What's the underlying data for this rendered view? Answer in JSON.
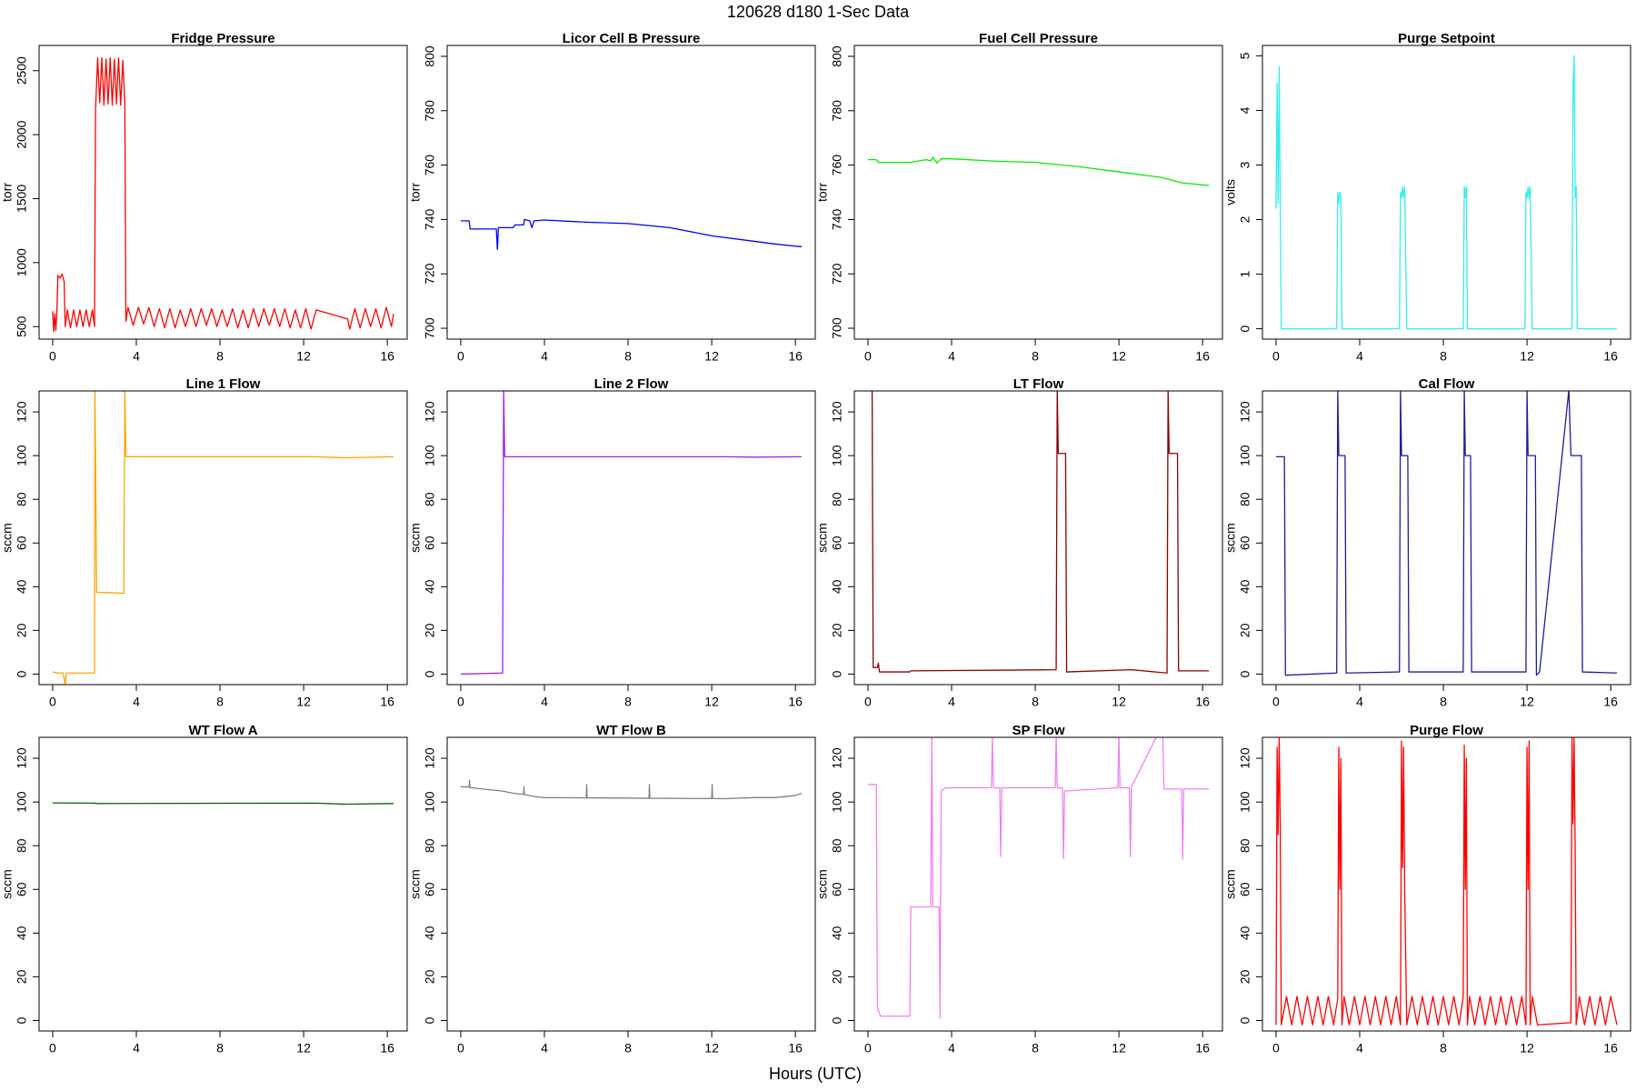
{
  "title": "120628   d180   1-Sec Data",
  "xlabel": "Hours (UTC)",
  "chart_data": [
    {
      "type": "line",
      "title": "Fridge Pressure",
      "ylabel": "torr",
      "color": "#ff0000",
      "xlim": [
        -0.65,
        16.95
      ],
      "xticks": [
        0,
        4,
        8,
        12,
        16
      ],
      "ylim": [
        402,
        2697
      ],
      "yticks": [
        500,
        1000,
        1500,
        2000,
        2500
      ],
      "x": [
        0,
        0.05,
        0.1,
        0.15,
        0.2,
        0.25,
        0.35,
        0.45,
        0.55,
        0.6,
        0.7,
        0.85,
        1.0,
        1.15,
        1.3,
        1.45,
        1.6,
        1.75,
        1.9,
        2.0,
        2.05,
        2.15,
        2.25,
        2.35,
        2.45,
        2.55,
        2.65,
        2.75,
        2.85,
        2.95,
        3.05,
        3.15,
        3.25,
        3.35,
        3.45,
        3.5,
        3.6,
        3.85,
        4.1,
        4.35,
        4.6,
        4.85,
        5.1,
        5.35,
        5.6,
        5.85,
        6.1,
        6.35,
        6.6,
        6.85,
        7.1,
        7.35,
        7.6,
        7.85,
        8.1,
        8.35,
        8.6,
        8.85,
        9.1,
        9.35,
        9.6,
        9.85,
        10.1,
        10.35,
        10.6,
        10.85,
        11.1,
        11.35,
        11.6,
        11.85,
        12.1,
        12.35,
        12.6,
        14.1,
        14.2,
        14.45,
        14.7,
        14.95,
        15.2,
        15.45,
        15.7,
        15.95,
        16.2,
        16.3
      ],
      "values": [
        620,
        460,
        600,
        470,
        610,
        900,
        880,
        910,
        850,
        500,
        630,
        490,
        630,
        500,
        630,
        500,
        630,
        500,
        630,
        500,
        2200,
        2600,
        2250,
        2600,
        2230,
        2590,
        2240,
        2600,
        2230,
        2590,
        2240,
        2600,
        2230,
        2580,
        2240,
        540,
        650,
        510,
        650,
        520,
        650,
        500,
        640,
        490,
        640,
        490,
        630,
        500,
        640,
        500,
        640,
        510,
        640,
        500,
        630,
        500,
        640,
        490,
        630,
        490,
        640,
        500,
        640,
        510,
        640,
        500,
        640,
        490,
        630,
        490,
        640,
        480,
        630,
        560,
        480,
        640,
        490,
        640,
        500,
        640,
        490,
        650,
        500,
        600
      ]
    },
    {
      "type": "line",
      "title": "Licor Cell B Pressure",
      "ylabel": "torr",
      "color": "#0000ff",
      "xlim": [
        -0.65,
        16.95
      ],
      "xticks": [
        0,
        4,
        8,
        12,
        16
      ],
      "ylim": [
        696,
        804
      ],
      "yticks": [
        700,
        720,
        740,
        760,
        780,
        800
      ],
      "x": [
        0,
        0.4,
        0.45,
        1.7,
        1.75,
        1.8,
        2.5,
        2.6,
        3.0,
        3.05,
        3.3,
        3.4,
        3.5,
        4,
        6,
        8,
        10,
        12,
        14,
        15,
        16,
        16.3
      ],
      "values": [
        739.5,
        739.5,
        736.5,
        736.5,
        729,
        737,
        737,
        738,
        738,
        740,
        739.5,
        737,
        739.5,
        739.8,
        739,
        738.5,
        737,
        734,
        732,
        731,
        730.2,
        730
      ]
    },
    {
      "type": "line",
      "title": "Fuel Cell Pressure",
      "ylabel": "torr",
      "color": "#00ee00",
      "xlim": [
        -0.65,
        16.95
      ],
      "xticks": [
        0,
        4,
        8,
        12,
        16
      ],
      "ylim": [
        696,
        804
      ],
      "yticks": [
        700,
        720,
        740,
        760,
        780,
        800
      ],
      "x": [
        0,
        0.4,
        0.5,
        2,
        2.8,
        3.0,
        3.1,
        3.3,
        3.5,
        4,
        6,
        8,
        10,
        12,
        14,
        15,
        16,
        16.3
      ],
      "values": [
        762,
        762,
        761,
        761,
        762,
        761.5,
        762.8,
        760.8,
        762.3,
        762.3,
        761.5,
        761,
        759.5,
        757.5,
        755.5,
        753.5,
        752.7,
        752.5
      ]
    },
    {
      "type": "line",
      "title": "Purge Setpoint",
      "ylabel": "volts",
      "color": "#33eeee",
      "xlim": [
        -0.65,
        16.95
      ],
      "xticks": [
        0,
        4,
        8,
        12,
        16
      ],
      "ylim": [
        -0.19,
        5.19
      ],
      "yticks": [
        0,
        1,
        2,
        3,
        4,
        5
      ],
      "x": [
        0,
        0.05,
        0.1,
        0.15,
        0.2,
        0.25,
        2.9,
        2.95,
        3.0,
        3.05,
        3.1,
        3.15,
        5.9,
        5.95,
        6.0,
        6.05,
        6.1,
        6.15,
        6.25,
        8.95,
        9.0,
        9.05,
        9.1,
        9.15,
        11.9,
        11.95,
        12.0,
        12.05,
        12.1,
        12.15,
        12.25,
        14.15,
        14.2,
        14.25,
        14.3,
        14.35,
        14.4,
        16.3
      ],
      "values": [
        2.2,
        4.5,
        2.3,
        4.8,
        2.2,
        0,
        0,
        2.5,
        2.3,
        2.5,
        2.4,
        0,
        0,
        2.5,
        2.4,
        2.6,
        2.4,
        2.6,
        0,
        0,
        2.6,
        2.4,
        2.6,
        0,
        0,
        2.5,
        2.4,
        2.6,
        2.4,
        2.6,
        0,
        0,
        4.5,
        5.0,
        2.4,
        2.6,
        0,
        0
      ]
    },
    {
      "type": "line",
      "title": "Line 1 Flow",
      "ylabel": "sccm",
      "color": "#ffa500",
      "xlim": [
        -0.65,
        16.95
      ],
      "xticks": [
        0,
        4,
        8,
        12,
        16
      ],
      "ylim": [
        -4.8,
        129.6
      ],
      "yticks": [
        0,
        20,
        40,
        60,
        80,
        100,
        120
      ],
      "x": [
        0,
        0.2,
        0.5,
        0.6,
        0.65,
        2.0,
        2.02,
        2.05,
        2.1,
        3.4,
        3.45,
        3.5,
        12.6,
        14,
        16.3
      ],
      "values": [
        1,
        0.5,
        0.5,
        -5,
        0.5,
        0.5,
        130,
        100,
        37.5,
        37,
        130,
        99.5,
        99.5,
        99,
        99.5
      ]
    },
    {
      "type": "line",
      "title": "Line 2 Flow",
      "ylabel": "sccm",
      "color": "#a020f0",
      "xlim": [
        -0.65,
        16.95
      ],
      "xticks": [
        0,
        4,
        8,
        12,
        16
      ],
      "ylim": [
        -4.8,
        129.6
      ],
      "yticks": [
        0,
        20,
        40,
        60,
        80,
        100,
        120
      ],
      "x": [
        0,
        2,
        2.05,
        2.1,
        12.6,
        14,
        16.3
      ],
      "values": [
        0,
        0.5,
        130,
        99.5,
        99.5,
        99.3,
        99.5
      ]
    },
    {
      "type": "line",
      "title": "LT Flow",
      "ylabel": "sccm",
      "color": "#8b0000",
      "xlim": [
        -0.65,
        16.95
      ],
      "xticks": [
        0,
        4,
        8,
        12,
        16
      ],
      "ylim": [
        -4.8,
        129.6
      ],
      "yticks": [
        0,
        20,
        40,
        60,
        80,
        100,
        120
      ],
      "x": [
        0.15,
        0.2,
        0.25,
        0.45,
        0.5,
        0.55,
        2.0,
        2.05,
        9.0,
        9.05,
        9.1,
        9.45,
        9.5,
        12.6,
        14.3,
        14.35,
        14.4,
        14.8,
        14.85,
        16.3
      ],
      "values": [
        130,
        130,
        3,
        3,
        5,
        1,
        1,
        1.5,
        2,
        130,
        101,
        101,
        1,
        2,
        0.5,
        130,
        101,
        101,
        1.5,
        1.5
      ]
    },
    {
      "type": "line",
      "title": "Cal Flow",
      "ylabel": "sccm",
      "color": "#1c1c9c",
      "xlim": [
        -0.65,
        16.95
      ],
      "xticks": [
        0,
        4,
        8,
        12,
        16
      ],
      "ylim": [
        -4.8,
        129.6
      ],
      "yticks": [
        0,
        20,
        40,
        60,
        80,
        100,
        120
      ],
      "x": [
        0,
        0.4,
        0.45,
        2.9,
        2.95,
        3.0,
        3.3,
        3.35,
        5.9,
        5.95,
        6.0,
        6.3,
        6.35,
        8.95,
        9.0,
        9.05,
        9.3,
        9.35,
        11.95,
        12.0,
        12.05,
        12.4,
        12.45,
        12.6,
        14.0,
        14.1,
        14.6,
        14.65,
        16.3
      ],
      "values": [
        99.5,
        99.5,
        -0.5,
        0.5,
        130,
        100,
        100,
        0.5,
        1,
        130,
        100,
        100,
        1,
        1,
        130,
        100,
        100,
        1,
        1,
        130,
        100,
        100,
        -0.5,
        1,
        130,
        100,
        100,
        1,
        0.5
      ]
    },
    {
      "type": "line",
      "title": "WT Flow A",
      "ylabel": "sccm",
      "color": "#006400",
      "xlim": [
        -0.65,
        16.95
      ],
      "xticks": [
        0,
        4,
        8,
        12,
        16
      ],
      "ylim": [
        -4.8,
        129.6
      ],
      "yticks": [
        0,
        20,
        40,
        60,
        80,
        100,
        120
      ],
      "x": [
        0,
        2,
        2.1,
        12.6,
        14,
        16.3
      ],
      "values": [
        99.6,
        99.5,
        99.3,
        99.5,
        99,
        99.3
      ]
    },
    {
      "type": "line",
      "title": "WT Flow B",
      "ylabel": "sccm",
      "color": "#808080",
      "xlim": [
        -0.65,
        16.95
      ],
      "xticks": [
        0,
        4,
        8,
        12,
        16
      ],
      "ylim": [
        -4.8,
        129.6
      ],
      "yticks": [
        0,
        20,
        40,
        60,
        80,
        100,
        120
      ],
      "x": [
        0,
        0.4,
        0.42,
        0.44,
        1,
        2,
        2.5,
        3,
        3.02,
        3.04,
        3.5,
        4,
        6,
        6.02,
        6.04,
        8,
        9,
        9.02,
        9.04,
        12,
        12.02,
        12.04,
        12.6,
        14,
        15,
        16,
        16.3
      ],
      "values": [
        107,
        106.8,
        110,
        106.6,
        106,
        105,
        104,
        103.5,
        107,
        103.5,
        102.5,
        102,
        101.9,
        108,
        101.9,
        101.8,
        101.7,
        108,
        101.7,
        101.6,
        108,
        101.6,
        101.5,
        102,
        102,
        103,
        104
      ]
    },
    {
      "type": "line",
      "title": "SP Flow",
      "ylabel": "sccm",
      "color": "#ee82ee",
      "xlim": [
        -0.65,
        16.95
      ],
      "xticks": [
        0,
        4,
        8,
        12,
        16
      ],
      "ylim": [
        -4.8,
        129.6
      ],
      "yticks": [
        0,
        20,
        40,
        60,
        80,
        100,
        120
      ],
      "x": [
        0,
        0.4,
        0.45,
        0.6,
        2.0,
        2.05,
        3.0,
        3.05,
        3.1,
        3.4,
        3.45,
        3.5,
        3.7,
        5.9,
        5.95,
        6.0,
        6.3,
        6.35,
        6.4,
        8.95,
        9.0,
        9.05,
        9.3,
        9.35,
        9.4,
        11.95,
        12.0,
        12.05,
        12.5,
        12.55,
        12.6,
        13.8,
        14.1,
        14.15,
        15.0,
        15.05,
        15.1,
        16.3
      ],
      "values": [
        108,
        108,
        6,
        2,
        2,
        52,
        52,
        130,
        52,
        52,
        1,
        105,
        106.5,
        106.5,
        130,
        106.5,
        106.5,
        75,
        106.5,
        106.5,
        130,
        106.5,
        106.5,
        74,
        105,
        106.5,
        130,
        106.5,
        106.5,
        75,
        107,
        130,
        130,
        106,
        106,
        74,
        106,
        106
      ]
    },
    {
      "type": "line",
      "title": "Purge Flow",
      "ylabel": "sccm",
      "color": "#ff0000",
      "xlim": [
        -0.65,
        16.95
      ],
      "xticks": [
        0,
        4,
        8,
        12,
        16
      ],
      "ylim": [
        -4.8,
        129.6
      ],
      "yticks": [
        0,
        20,
        40,
        60,
        80,
        100,
        120
      ],
      "x": [
        0,
        0.05,
        0.1,
        0.15,
        0.2,
        0.25,
        0.5,
        0.75,
        1,
        1.25,
        1.5,
        1.75,
        2,
        2.25,
        2.5,
        2.75,
        2.95,
        3.0,
        3.05,
        3.1,
        3.15,
        3.25,
        3.5,
        3.75,
        4,
        4.25,
        4.5,
        4.75,
        5,
        5.25,
        5.5,
        5.75,
        5.95,
        6.0,
        6.05,
        6.1,
        6.15,
        6.25,
        6.5,
        6.75,
        7,
        7.25,
        7.5,
        7.75,
        8,
        8.25,
        8.5,
        8.75,
        8.95,
        9.0,
        9.05,
        9.1,
        9.15,
        9.25,
        9.5,
        9.75,
        10,
        10.25,
        10.5,
        10.75,
        11,
        11.25,
        11.5,
        11.75,
        11.95,
        12.0,
        12.05,
        12.1,
        12.15,
        12.25,
        12.5,
        14.1,
        14.15,
        14.2,
        14.25,
        14.3,
        14.35,
        14.5,
        14.75,
        15,
        15.25,
        15.5,
        15.75,
        16,
        16.3
      ],
      "values": [
        -2,
        125,
        85,
        130,
        90,
        -2,
        11,
        -2,
        11,
        -2,
        11,
        -2,
        11,
        -2,
        11,
        -2,
        10,
        125,
        60,
        120,
        -2,
        11,
        -2,
        11,
        -2,
        11,
        -2,
        11,
        -2,
        11,
        -2,
        11,
        -2,
        128,
        70,
        125,
        60,
        -2,
        11,
        -2,
        11,
        -2,
        11,
        -2,
        11,
        -2,
        11,
        -2,
        11,
        126,
        60,
        120,
        -2,
        11,
        -2,
        11,
        -2,
        11,
        -2,
        11,
        -2,
        11,
        -2,
        11,
        -2,
        125,
        60,
        128,
        -2,
        11,
        -2,
        -1,
        130,
        90,
        130,
        80,
        -2,
        11,
        -2,
        11,
        -2,
        11,
        -2,
        11,
        -2
      ]
    }
  ]
}
